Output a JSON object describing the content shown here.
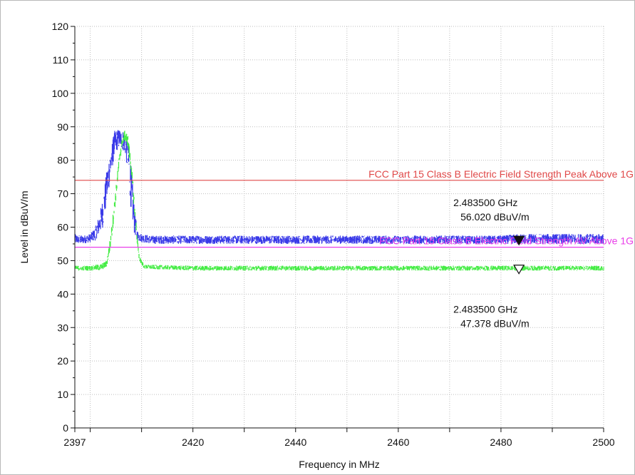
{
  "chart_data": {
    "type": "line",
    "xlabel": "Frequency in MHz",
    "ylabel": "Level in dBuV/m",
    "xlim": [
      2397,
      2500
    ],
    "ylim": [
      0,
      120
    ],
    "x_ticks": [
      2397,
      2420,
      2440,
      2460,
      2480,
      2500
    ],
    "x_minor_ticks": [
      2400,
      2410,
      2430,
      2450,
      2470,
      2490
    ],
    "y_ticks": [
      0,
      10,
      20,
      30,
      40,
      50,
      60,
      70,
      80,
      90,
      100,
      110,
      120
    ],
    "grid": true,
    "series": [
      {
        "color": "#3a3ae8",
        "style": "noisy-band",
        "x": [
          2397,
          2398.5,
          2400,
          2401,
          2401.8,
          2402.5,
          2403.3,
          2404,
          2404.8,
          2405.8,
          2406.8,
          2407.5,
          2408,
          2408.6,
          2409.2,
          2410,
          2412,
          2420,
          2440,
          2460,
          2480,
          2483.5,
          2490,
          2500
        ],
        "upper": [
          58,
          57.5,
          58,
          60,
          64,
          69,
          78,
          84,
          89,
          89.5,
          88.5,
          85,
          78,
          66,
          59,
          58,
          57.5,
          57.5,
          57.5,
          57.5,
          57.5,
          58,
          58,
          58
        ],
        "lower": [
          55,
          55,
          55.5,
          56,
          58,
          60,
          68,
          75,
          82,
          84,
          82,
          74,
          64,
          58,
          56,
          55.5,
          55,
          55,
          55,
          55,
          55,
          55,
          55,
          55
        ]
      },
      {
        "color": "#45ec45",
        "style": "noisy-band",
        "x": [
          2397,
          2400,
          2402,
          2403.2,
          2404,
          2405,
          2405.8,
          2406.6,
          2407.3,
          2408,
          2408.8,
          2409.5,
          2410.5,
          2420,
          2440,
          2460,
          2480,
          2483.5,
          2500
        ],
        "upper": [
          48.5,
          48.5,
          49,
          50,
          58,
          72,
          84,
          89,
          88,
          80,
          64,
          52,
          48.8,
          48.5,
          48.5,
          48.5,
          48.5,
          48.5,
          48.5
        ],
        "lower": [
          47,
          47,
          47,
          48,
          54,
          68,
          80,
          86,
          84,
          76,
          60,
          50,
          47.5,
          47,
          47,
          47,
          47,
          47,
          47
        ]
      }
    ],
    "limit_lines": [
      {
        "label": "FCC Part 15 Class B Electric Field Strength Peak Above 1G",
        "value": 74,
        "color": "#e04848"
      },
      {
        "label": "FCC Part 15 Class B Electric Field Strength AV Above 1G",
        "value": 54,
        "color": "#e83ee8"
      }
    ],
    "markers": [
      {
        "x": 2483.5,
        "y": 56.02,
        "freq_label": "2.483500 GHz",
        "level_label": "56.020 dBuV/m",
        "filled": true
      },
      {
        "x": 2483.5,
        "y": 47.378,
        "freq_label": "2.483500 GHz",
        "level_label": "47.378 dBuV/m",
        "filled": false
      }
    ]
  }
}
